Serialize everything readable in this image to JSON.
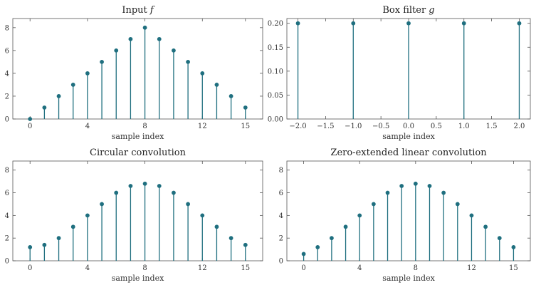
{
  "style": {
    "stem_color": "#1f6f7f"
  },
  "chart_data": [
    {
      "type": "stem",
      "title": "Input f",
      "title_main": "Input ",
      "title_var": "f",
      "xlabel": "sample index",
      "ylabel": "",
      "x": [
        0,
        1,
        2,
        3,
        4,
        5,
        6,
        7,
        8,
        9,
        10,
        11,
        12,
        13,
        14,
        15
      ],
      "values": [
        0,
        1,
        2,
        3,
        4,
        5,
        6,
        7,
        8,
        7,
        6,
        5,
        4,
        3,
        2,
        1
      ],
      "xlim": [
        -1.2,
        16.2
      ],
      "ylim": [
        0,
        8.8
      ],
      "xticks": [
        0,
        4,
        8,
        12,
        15
      ],
      "xtick_labels": [
        "0",
        "4",
        "8",
        "12",
        "15"
      ],
      "yticks": [
        0,
        2,
        4,
        6,
        8
      ],
      "ytick_labels": [
        "0",
        "2",
        "4",
        "6",
        "8"
      ]
    },
    {
      "type": "stem",
      "title": "Box filter g",
      "title_main": "Box filter ",
      "title_var": "g",
      "xlabel": "sample index",
      "ylabel": "",
      "x": [
        -2,
        -1,
        0,
        1,
        2
      ],
      "values": [
        0.2,
        0.2,
        0.2,
        0.2,
        0.2
      ],
      "xlim": [
        -2.2,
        2.2
      ],
      "ylim": [
        0,
        0.21
      ],
      "xticks": [
        -2,
        -1.5,
        -1,
        -0.5,
        0,
        0.5,
        1,
        1.5,
        2
      ],
      "xtick_labels": [
        "−2.0",
        "−1.5",
        "−1.0",
        "−0.5",
        "0.0",
        "0.5",
        "1.0",
        "1.5",
        "2.0"
      ],
      "yticks": [
        0,
        0.05,
        0.1,
        0.15,
        0.2
      ],
      "ytick_labels": [
        "0.00",
        "0.05",
        "0.10",
        "0.15",
        "0.20"
      ]
    },
    {
      "type": "stem",
      "title": "Circular convolution",
      "title_main": "Circular convolution",
      "title_var": "",
      "xlabel": "sample index",
      "ylabel": "",
      "x": [
        0,
        1,
        2,
        3,
        4,
        5,
        6,
        7,
        8,
        9,
        10,
        11,
        12,
        13,
        14,
        15
      ],
      "values": [
        1.2,
        1.4,
        2,
        3,
        4,
        5,
        6,
        6.6,
        6.8,
        6.6,
        6,
        5,
        4,
        3,
        2,
        1.4
      ],
      "xlim": [
        -1.2,
        16.2
      ],
      "ylim": [
        0,
        8.8
      ],
      "xticks": [
        0,
        4,
        8,
        12,
        15
      ],
      "xtick_labels": [
        "0",
        "4",
        "8",
        "12",
        "15"
      ],
      "yticks": [
        0,
        2,
        4,
        6,
        8
      ],
      "ytick_labels": [
        "0",
        "2",
        "4",
        "6",
        "8"
      ]
    },
    {
      "type": "stem",
      "title": "Zero-extended linear convolution",
      "title_main": "Zero-extended linear convolution",
      "title_var": "",
      "xlabel": "sample index",
      "ylabel": "",
      "x": [
        0,
        1,
        2,
        3,
        4,
        5,
        6,
        7,
        8,
        9,
        10,
        11,
        12,
        13,
        14,
        15
      ],
      "values": [
        0.6,
        1.2,
        2,
        3,
        4,
        5,
        6,
        6.6,
        6.8,
        6.6,
        6,
        5,
        4,
        3,
        2,
        1.2
      ],
      "xlim": [
        -1.2,
        16.2
      ],
      "ylim": [
        0,
        8.8
      ],
      "xticks": [
        0,
        4,
        8,
        12,
        15
      ],
      "xtick_labels": [
        "0",
        "4",
        "8",
        "12",
        "15"
      ],
      "yticks": [
        0,
        2,
        4,
        6,
        8
      ],
      "ytick_labels": [
        "0",
        "2",
        "4",
        "6",
        "8"
      ]
    }
  ]
}
